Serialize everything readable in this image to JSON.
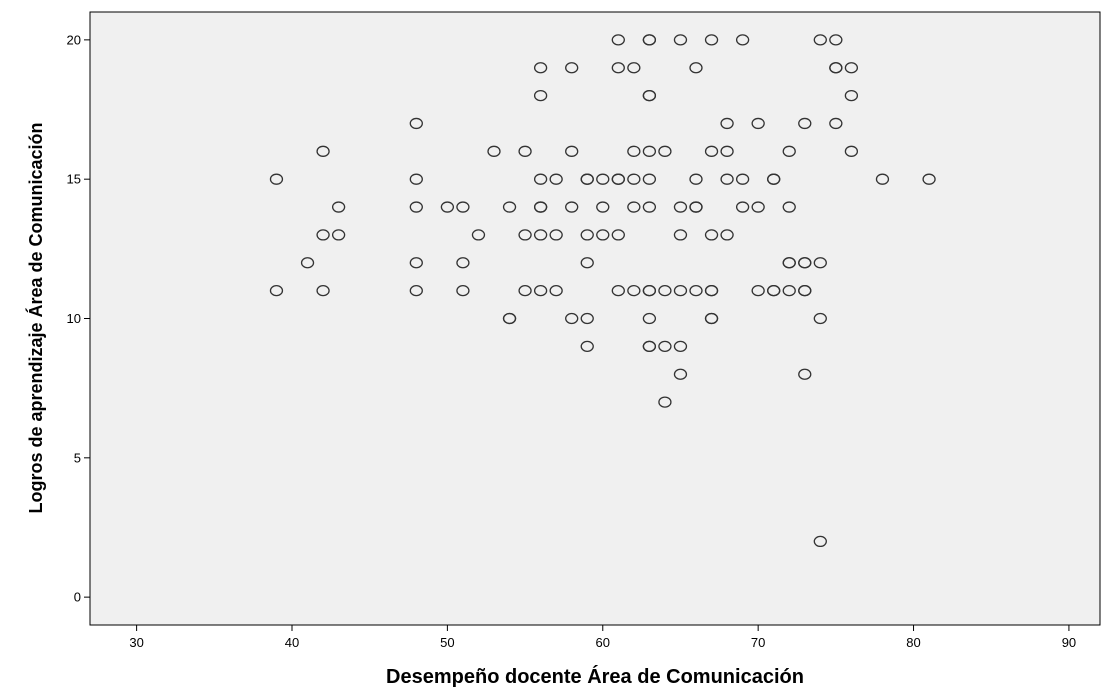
{
  "chart_data": {
    "type": "scatter",
    "title": "",
    "xlabel": "Desempeño docente Área de Comunicación",
    "ylabel": "Logros de aprendizaje Área de Comunicación",
    "xlim": [
      27,
      92
    ],
    "ylim": [
      -1,
      21
    ],
    "xticks": [
      30,
      40,
      50,
      60,
      70,
      80,
      90
    ],
    "yticks": [
      0,
      5,
      10,
      15,
      20
    ],
    "grid": false,
    "legend": "none",
    "colors": {
      "plot_background": "#f0f0f0",
      "marker_stroke": "#333333",
      "axis": "#000000"
    },
    "points": [
      [
        39,
        15
      ],
      [
        39,
        11
      ],
      [
        41,
        12
      ],
      [
        42,
        16
      ],
      [
        42,
        13
      ],
      [
        42,
        11
      ],
      [
        43,
        14
      ],
      [
        43,
        13
      ],
      [
        48,
        17
      ],
      [
        48,
        15
      ],
      [
        48,
        14
      ],
      [
        48,
        12
      ],
      [
        48,
        11
      ],
      [
        50,
        14
      ],
      [
        51,
        14
      ],
      [
        51,
        12
      ],
      [
        51,
        11
      ],
      [
        52,
        13
      ],
      [
        53,
        16
      ],
      [
        54,
        14
      ],
      [
        54,
        10
      ],
      [
        54,
        10
      ],
      [
        55,
        16
      ],
      [
        55,
        13
      ],
      [
        55,
        11
      ],
      [
        56,
        19
      ],
      [
        56,
        18
      ],
      [
        56,
        15
      ],
      [
        56,
        14
      ],
      [
        56,
        14
      ],
      [
        56,
        13
      ],
      [
        56,
        11
      ],
      [
        57,
        15
      ],
      [
        57,
        13
      ],
      [
        57,
        11
      ],
      [
        58,
        19
      ],
      [
        58,
        16
      ],
      [
        58,
        14
      ],
      [
        58,
        10
      ],
      [
        59,
        15
      ],
      [
        59,
        15
      ],
      [
        59,
        13
      ],
      [
        59,
        12
      ],
      [
        59,
        10
      ],
      [
        59,
        9
      ],
      [
        60,
        15
      ],
      [
        60,
        14
      ],
      [
        60,
        13
      ],
      [
        61,
        20
      ],
      [
        61,
        19
      ],
      [
        61,
        15
      ],
      [
        61,
        15
      ],
      [
        61,
        13
      ],
      [
        61,
        11
      ],
      [
        62,
        19
      ],
      [
        62,
        16
      ],
      [
        62,
        15
      ],
      [
        62,
        14
      ],
      [
        62,
        11
      ],
      [
        63,
        20
      ],
      [
        63,
        20
      ],
      [
        63,
        18
      ],
      [
        63,
        18
      ],
      [
        63,
        16
      ],
      [
        63,
        15
      ],
      [
        63,
        14
      ],
      [
        63,
        11
      ],
      [
        63,
        11
      ],
      [
        63,
        10
      ],
      [
        63,
        9
      ],
      [
        63,
        9
      ],
      [
        64,
        16
      ],
      [
        64,
        11
      ],
      [
        64,
        9
      ],
      [
        64,
        7
      ],
      [
        65,
        20
      ],
      [
        65,
        14
      ],
      [
        65,
        13
      ],
      [
        65,
        11
      ],
      [
        65,
        9
      ],
      [
        65,
        8
      ],
      [
        66,
        19
      ],
      [
        66,
        15
      ],
      [
        66,
        14
      ],
      [
        66,
        14
      ],
      [
        66,
        11
      ],
      [
        67,
        20
      ],
      [
        67,
        16
      ],
      [
        67,
        13
      ],
      [
        67,
        11
      ],
      [
        67,
        11
      ],
      [
        67,
        10
      ],
      [
        67,
        10
      ],
      [
        68,
        17
      ],
      [
        68,
        16
      ],
      [
        68,
        15
      ],
      [
        68,
        13
      ],
      [
        69,
        20
      ],
      [
        69,
        15
      ],
      [
        69,
        14
      ],
      [
        70,
        17
      ],
      [
        70,
        14
      ],
      [
        70,
        11
      ],
      [
        71,
        15
      ],
      [
        71,
        15
      ],
      [
        71,
        11
      ],
      [
        71,
        11
      ],
      [
        72,
        16
      ],
      [
        72,
        14
      ],
      [
        72,
        12
      ],
      [
        72,
        12
      ],
      [
        72,
        11
      ],
      [
        73,
        17
      ],
      [
        73,
        12
      ],
      [
        73,
        12
      ],
      [
        73,
        11
      ],
      [
        73,
        11
      ],
      [
        73,
        8
      ],
      [
        74,
        20
      ],
      [
        74,
        12
      ],
      [
        74,
        10
      ],
      [
        74,
        2
      ],
      [
        75,
        20
      ],
      [
        75,
        19
      ],
      [
        75,
        19
      ],
      [
        75,
        17
      ],
      [
        76,
        19
      ],
      [
        76,
        18
      ],
      [
        76,
        16
      ],
      [
        78,
        15
      ],
      [
        81,
        15
      ]
    ]
  }
}
